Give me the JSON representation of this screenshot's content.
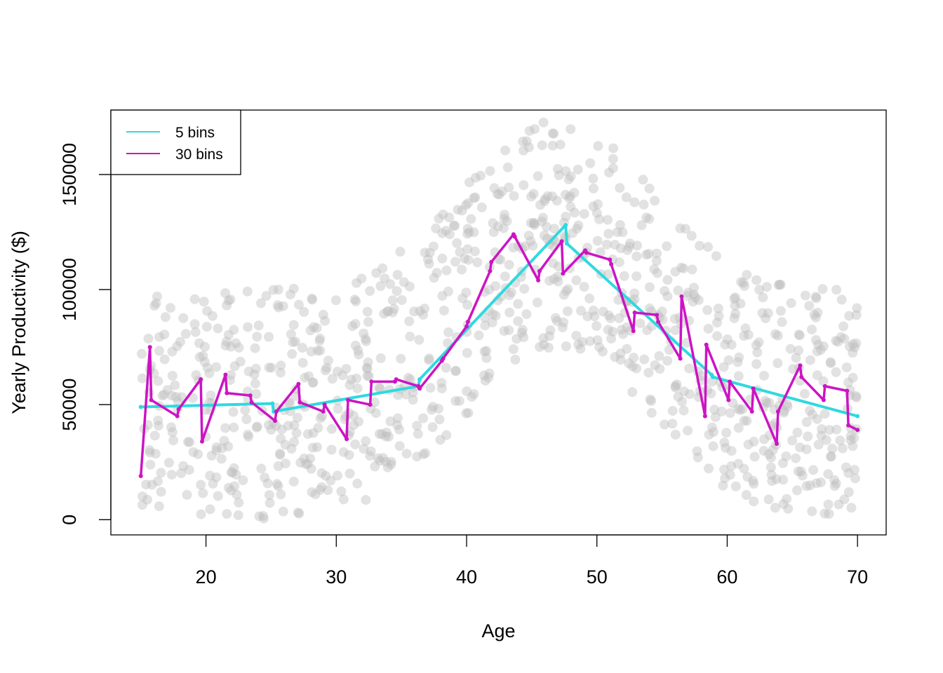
{
  "chart_data": {
    "type": "scatter",
    "title": "",
    "xlabel": "Age",
    "ylabel": "Yearly Productivity ($)",
    "xlim": [
      12.7,
      72.2
    ],
    "ylim": [
      -6600,
      178000
    ],
    "x_ticks": [
      20,
      30,
      40,
      50,
      60,
      70
    ],
    "y_ticks": [
      0,
      50000,
      100000,
      150000
    ],
    "grid": false,
    "legend": {
      "position": "top-left",
      "entries": [
        {
          "label": "5 bins",
          "color": "#2FD9E0"
        },
        {
          "label": "30 bins",
          "color": "#CC14C4"
        }
      ]
    },
    "points": {
      "color": "#BEBEBE",
      "note": "1000 simulated observations around a bell-shaped mean",
      "count": 1000
    },
    "series": [
      {
        "name": "5 bins",
        "color": "#2FD9E0",
        "x": [
          15,
          25.1,
          25.2,
          36.3,
          36.4,
          47.6,
          47.7,
          58.8,
          58.9,
          70
        ],
        "y": [
          49000,
          50500,
          47000,
          58000,
          61000,
          128000,
          120000,
          63000,
          62000,
          45000
        ]
      },
      {
        "name": "30 bins",
        "color": "#CC14C4",
        "x": [
          15,
          15.7,
          15.8,
          17.8,
          17.9,
          19.6,
          19.7,
          21.5,
          21.6,
          23.4,
          23.5,
          25.3,
          25.4,
          27.1,
          27.2,
          29,
          29.1,
          30.8,
          30.9,
          32.6,
          32.7,
          34.5,
          34.6,
          36.3,
          36.4,
          38.1,
          38.2,
          40,
          40.1,
          41.8,
          41.9,
          43.6,
          43.7,
          45.5,
          45.6,
          47.3,
          47.4,
          49.1,
          49.2,
          51,
          51.1,
          52.8,
          52.9,
          54.6,
          54.7,
          56.4,
          56.5,
          58.3,
          58.4,
          60.1,
          60.2,
          61.9,
          62,
          63.8,
          63.9,
          65.6,
          65.7,
          67.4,
          67.5,
          69.2,
          69.3,
          70
        ],
        "y": [
          19000,
          75000,
          52000,
          45000,
          48000,
          61000,
          34000,
          63000,
          55000,
          54000,
          51000,
          43000,
          47000,
          59000,
          51000,
          47000,
          50000,
          35000,
          52000,
          50000,
          60000,
          60000,
          61000,
          58000,
          57000,
          69000,
          70000,
          84000,
          86000,
          108000,
          112000,
          124000,
          123000,
          104000,
          108000,
          121000,
          107000,
          117000,
          116000,
          113000,
          111000,
          82000,
          90000,
          89000,
          86000,
          70000,
          97000,
          45000,
          76000,
          52000,
          60000,
          47000,
          57000,
          33000,
          47000,
          67000,
          62000,
          52000,
          58000,
          56000,
          41000,
          39000
        ]
      }
    ]
  }
}
